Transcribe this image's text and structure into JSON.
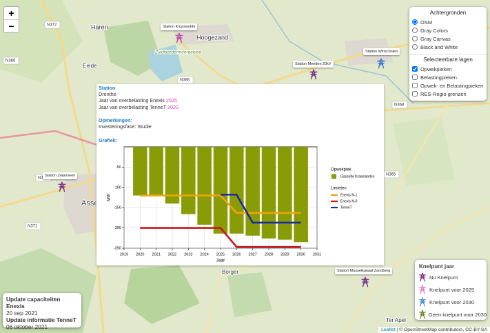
{
  "zoom": {
    "in": "+",
    "out": "−"
  },
  "map_labels": [
    {
      "text": "Haren"
    },
    {
      "text": "Hoogezand"
    },
    {
      "text": "Eelde"
    },
    {
      "text": "Zuidlaardermeergebied"
    },
    {
      "text": "Assen"
    },
    {
      "text": "Borger"
    },
    {
      "text": "Ter Apel"
    },
    {
      "text": "N372"
    },
    {
      "text": "N386"
    },
    {
      "text": "N366"
    },
    {
      "text": "N368"
    },
    {
      "text": "N371"
    },
    {
      "text": "N373"
    },
    {
      "text": "N365"
    }
  ],
  "stations": [
    {
      "label": "Station Kropswolde",
      "color": "#c056a8"
    },
    {
      "label": "Station Meeden 20kV",
      "color": "#7b3b8c"
    },
    {
      "label": "Station Winschoten",
      "color": "#3c7ccc"
    },
    {
      "label": "Station Zeijerveen",
      "color": "#7b3b8c"
    },
    {
      "label": "Station Musselkanaal Zandberg",
      "color": "#7b3b8c"
    }
  ],
  "layers_panel": {
    "backgrounds_title": "Achtergronden",
    "backgrounds": [
      {
        "label": "OSM",
        "checked": true
      },
      {
        "label": "Gray Colors",
        "checked": false
      },
      {
        "label": "Gray Canvas",
        "checked": false
      },
      {
        "label": "Black and White",
        "checked": false
      }
    ],
    "layers_title": "Selecteerbare lagen",
    "layers": [
      {
        "label": "Opwekpieken",
        "checked": true
      },
      {
        "label": "Belastingpieken",
        "checked": false
      },
      {
        "label": "Opwek- en Belastingpieken",
        "checked": false
      },
      {
        "label": "RES-Regio grenzen",
        "checked": false
      }
    ]
  },
  "popup": {
    "station_heading": "Station",
    "province": "Drenthe",
    "enexis_text": "Jaar van overbelasting Enexis",
    "enexis_year": 2025,
    "tennet_text": "Jaar van overbelasting TenneT",
    "tennet_year": 2020,
    "remarks_heading": "Opmerkingen:",
    "remarks": "Investeringsfase: Studie",
    "graph_heading": "Grafiek:"
  },
  "chart_data": {
    "type": "bar",
    "y_label": "MW",
    "x_label": "Jaar",
    "legend_groups": [
      "Opwekpiek",
      "Limieten"
    ],
    "x": [
      2020,
      2021,
      2022,
      2023,
      2024,
      2025,
      2026,
      2027,
      2028,
      2029,
      2030
    ],
    "series": [
      {
        "name": "Gasselte Kraanlanden",
        "type": "bar",
        "color": "#8a9c05",
        "values": [
          -120,
          -120,
          -140,
          -166,
          -192,
          -214,
          -214,
          -219,
          -226,
          -229,
          -235
        ]
      },
      {
        "name": "Enexis N-1",
        "type": "line",
        "color": "#f0a30a",
        "values": [
          -120,
          -120,
          -120,
          -120,
          -120,
          -120,
          -163,
          -163,
          -163,
          -163,
          -163
        ]
      },
      {
        "name": "Enexis N-0",
        "type": "line",
        "color": "#c8161b",
        "values": [
          -200,
          -200,
          -200,
          -200,
          -200,
          -200,
          -247,
          -247,
          -247,
          -247,
          -247
        ]
      },
      {
        "name": "TenneT",
        "type": "line",
        "color": "#1c2aa0",
        "values": [
          null,
          null,
          null,
          null,
          null,
          -118,
          -118,
          -187,
          -187,
          -187,
          -187
        ]
      }
    ],
    "xlim": [
      2019,
      2031
    ],
    "xticks": [
      2019,
      2020,
      2021,
      2022,
      2023,
      2024,
      2025,
      2026,
      2027,
      2028,
      2029,
      2030,
      2031
    ],
    "ylim": [
      -250,
      0
    ],
    "yticks": [
      -250,
      -200,
      -150,
      -100,
      -50
    ],
    "grid": true
  },
  "knelpunt_legend": {
    "title": "Knelpunt jaar",
    "items": [
      {
        "label": "Nu Knelpunt",
        "color": "#8a3c8e"
      },
      {
        "label": "Knelpunt voor 2025",
        "color": "#e884c4"
      },
      {
        "label": "Knelpunt voor 2030",
        "color": "#4d93d9"
      },
      {
        "label": "Geen knelpunt voor 2030",
        "color": "#6f8a2a"
      }
    ]
  },
  "update_box": {
    "enexis_title": "Update capaciteiten Enexis",
    "enexis_date": "20 sep 2021",
    "tennet_title": "Update informatie TenneT",
    "tennet_date": "06 oktober 2021"
  },
  "attribution": {
    "leaflet": "Leaflet",
    "text": "| © OpenStreetMap contributors, CC-BY-SA"
  }
}
